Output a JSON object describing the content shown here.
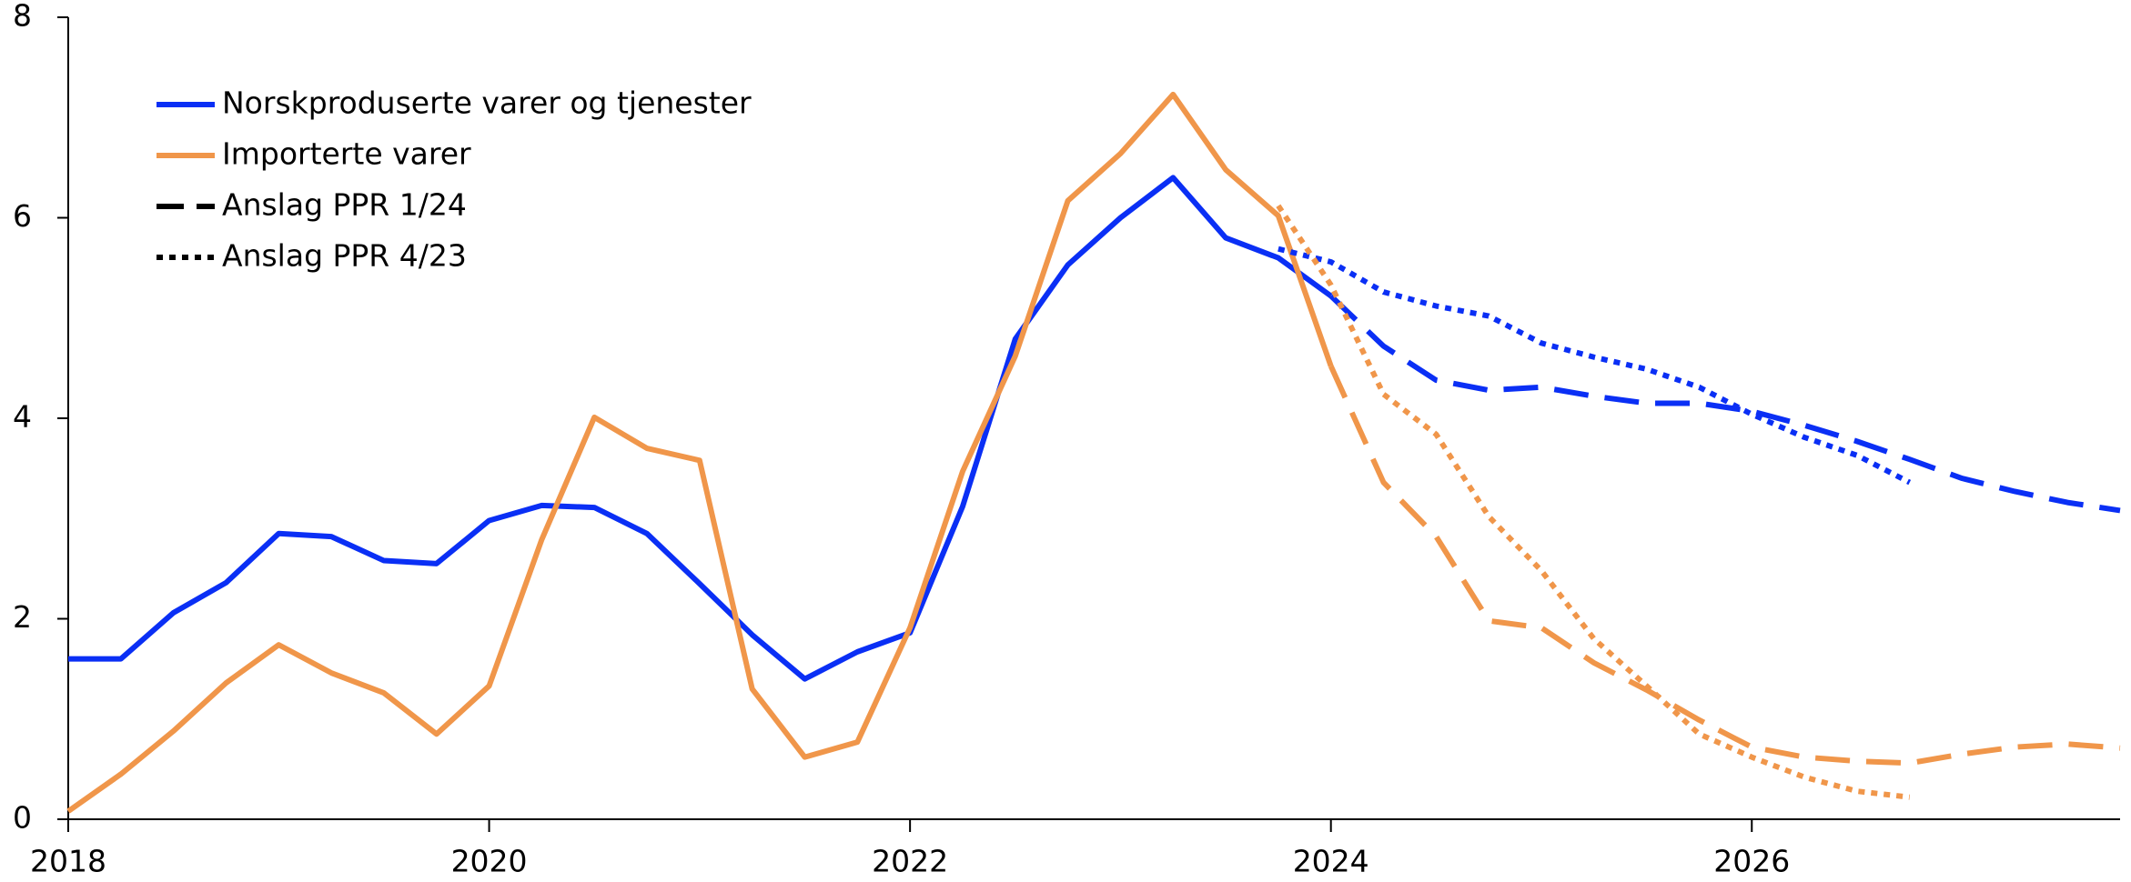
{
  "chart_data": {
    "type": "line",
    "x": [
      2018,
      2018.25,
      2018.5,
      2018.75,
      2019,
      2019.25,
      2019.5,
      2019.75,
      2020,
      2020.25,
      2020.5,
      2020.75,
      2021,
      2021.25,
      2021.5,
      2021.75,
      2022,
      2022.25,
      2022.5,
      2022.75,
      2023,
      2023.25,
      2023.5,
      2023.75,
      2024,
      2024.25,
      2024.5,
      2024.75,
      2025,
      2025.25,
      2025.5,
      2025.75,
      2026,
      2026.25,
      2026.5,
      2026.75,
      2027,
      2027.25,
      2027.5,
      2027.75
    ],
    "xlim": [
      2018,
      2027.75
    ],
    "xticks": [
      2018,
      2020,
      2022,
      2024,
      2026
    ],
    "ylim": [
      0,
      8
    ],
    "yticks": [
      0,
      2,
      4,
      6,
      8
    ],
    "legend": [
      {
        "label": "Norskproduserte varer og tjenester",
        "color": "#0a2ff5",
        "dash": "solid"
      },
      {
        "label": "Importerte varer",
        "color": "#f0964a",
        "dash": "solid"
      },
      {
        "label": "Anslag PPR 1/24",
        "color": "#000000",
        "dash": "dashed"
      },
      {
        "label": "Anslag PPR 4/23",
        "color": "#000000",
        "dash": "dotted"
      }
    ],
    "series": [
      {
        "color": "#0a2ff5",
        "dash": "solid",
        "values": [
          1.6,
          1.6,
          2.06,
          2.36,
          2.85,
          2.82,
          2.58,
          2.55,
          2.98,
          3.13,
          3.11,
          2.85,
          2.35,
          1.84,
          1.4,
          1.67,
          1.86,
          3.12,
          4.79,
          5.53,
          6.0,
          6.4,
          5.8,
          5.6,
          5.22,
          null,
          null,
          null,
          null,
          null,
          null,
          null,
          null,
          null,
          null,
          null,
          null,
          null,
          null,
          null
        ]
      },
      {
        "color": "#f0964a",
        "dash": "solid",
        "values": [
          0.08,
          0.45,
          0.88,
          1.36,
          1.74,
          1.46,
          1.26,
          0.85,
          1.33,
          2.79,
          4.01,
          3.7,
          3.58,
          1.3,
          0.62,
          0.77,
          1.91,
          3.47,
          4.62,
          6.17,
          6.64,
          7.23,
          6.48,
          6.02,
          4.52,
          null,
          null,
          null,
          null,
          null,
          null,
          null,
          null,
          null,
          null,
          null,
          null,
          null,
          null,
          null
        ]
      },
      {
        "color": "#0a2ff5",
        "dash": "dashed",
        "values": [
          null,
          null,
          null,
          null,
          null,
          null,
          null,
          null,
          null,
          null,
          null,
          null,
          null,
          null,
          null,
          null,
          null,
          null,
          null,
          null,
          null,
          null,
          null,
          null,
          5.22,
          4.72,
          4.38,
          4.28,
          4.31,
          4.22,
          4.15,
          4.15,
          4.07,
          3.93,
          3.77,
          3.59,
          3.4,
          3.27,
          3.16,
          3.08
        ]
      },
      {
        "color": "#f0964a",
        "dash": "dashed",
        "values": [
          null,
          null,
          null,
          null,
          null,
          null,
          null,
          null,
          null,
          null,
          null,
          null,
          null,
          null,
          null,
          null,
          null,
          null,
          null,
          null,
          null,
          null,
          null,
          null,
          4.52,
          3.36,
          2.82,
          1.98,
          1.91,
          1.56,
          1.29,
          0.99,
          0.72,
          0.62,
          0.58,
          0.56,
          0.65,
          0.72,
          0.75,
          0.71
        ]
      },
      {
        "color": "#0a2ff5",
        "dash": "dotted",
        "values": [
          null,
          null,
          null,
          null,
          null,
          null,
          null,
          null,
          null,
          null,
          null,
          null,
          null,
          null,
          null,
          null,
          null,
          null,
          null,
          null,
          null,
          null,
          null,
          5.69,
          5.56,
          5.26,
          5.12,
          5.02,
          4.75,
          4.61,
          4.49,
          4.31,
          4.04,
          3.81,
          3.63,
          3.36,
          null,
          null,
          null,
          null
        ]
      },
      {
        "color": "#f0964a",
        "dash": "dotted",
        "values": [
          null,
          null,
          null,
          null,
          null,
          null,
          null,
          null,
          null,
          null,
          null,
          null,
          null,
          null,
          null,
          null,
          null,
          null,
          null,
          null,
          null,
          null,
          null,
          6.12,
          5.33,
          4.24,
          3.84,
          3.02,
          2.48,
          1.8,
          1.33,
          0.85,
          0.62,
          0.42,
          0.28,
          0.22,
          null,
          null,
          null,
          null
        ]
      }
    ]
  }
}
